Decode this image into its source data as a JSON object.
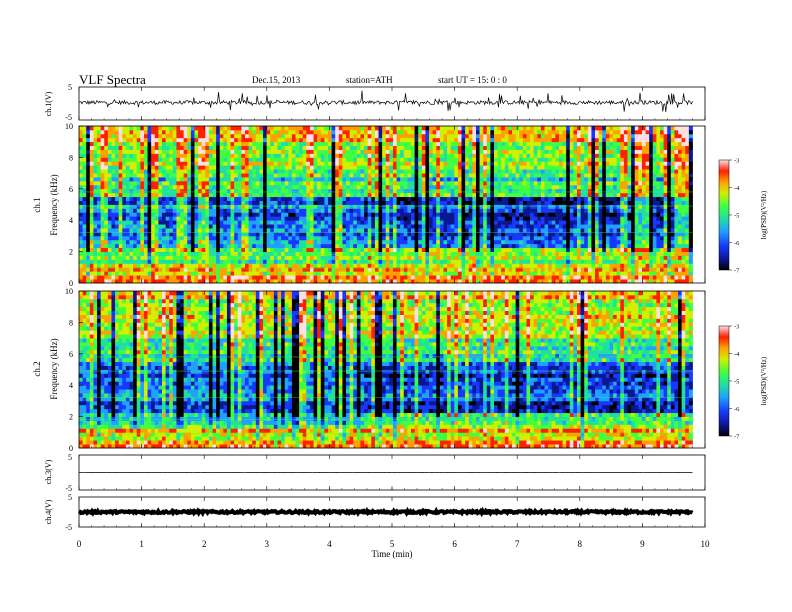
{
  "header": {
    "title": "VLF  Spectra",
    "date": "Dec.15, 2013",
    "station": "station=ATH",
    "start_ut": "start  UT  =    15: 0   : 0"
  },
  "colors": {
    "colormap": [
      "#000000",
      "#0a1890",
      "#1838ff",
      "#20a0ff",
      "#20e0a0",
      "#40ff40",
      "#d0f000",
      "#ffa000",
      "#ff2000",
      "#ffe0e0"
    ],
    "trace": "#000000"
  },
  "chart_data": [
    {
      "type": "line",
      "name": "ch1-waveform",
      "ylabel": "ch.1(V)",
      "ylim": [
        -5,
        5
      ],
      "yticks": [
        "5",
        "-5"
      ],
      "xlim": [
        0,
        10
      ],
      "note_values": "continuous noisy trace near 0 V with frequent spikes",
      "baseline": 0.3,
      "noise_amplitude": 0.6
    },
    {
      "type": "heatmap",
      "name": "ch1-spectrogram",
      "ylabel_channel": "ch.1",
      "ylabel": "Frequency  (kHz)",
      "ylim": [
        0,
        10
      ],
      "yticks": [
        "0",
        "2",
        "4",
        "6",
        "8",
        "10"
      ],
      "xlim": [
        0,
        9.8
      ],
      "colorbar": {
        "label": "log(PSD)(V²/Hz)",
        "range": [
          -7,
          -3
        ],
        "ticks": [
          "-3",
          "-4",
          "-5",
          "-6",
          "-7"
        ]
      },
      "band_change_time": 4.5
    },
    {
      "type": "heatmap",
      "name": "ch2-spectrogram",
      "ylabel_channel": "ch.2",
      "ylabel": "Frequency  (kHz)",
      "ylim": [
        0,
        10
      ],
      "yticks": [
        "0",
        "2",
        "4",
        "6",
        "8",
        "10"
      ],
      "xlim": [
        0,
        9.8
      ],
      "colorbar": {
        "label": "log(PSD)(V²/Hz)",
        "range": [
          -7,
          -3
        ],
        "ticks": [
          "-3",
          "-4",
          "-5",
          "-6",
          "-7"
        ]
      },
      "band_change_time": 4.5
    },
    {
      "type": "line",
      "name": "ch3-waveform",
      "ylabel": "ch.3(V)",
      "ylim": [
        -5,
        5
      ],
      "yticks": [
        "5",
        "-5"
      ],
      "xlim": [
        0,
        10
      ],
      "baseline": 0.0,
      "noise_amplitude": 0.05
    },
    {
      "type": "line",
      "name": "ch4-waveform",
      "ylabel": "ch.4(V)",
      "ylim": [
        -5,
        5
      ],
      "yticks": [
        "5",
        "-5"
      ],
      "xlim": [
        0,
        10
      ],
      "baseline": 0.0,
      "noise_amplitude": 0.35
    }
  ],
  "x_axis": {
    "label": "Time  (min)",
    "range": [
      0,
      10
    ],
    "ticks": [
      "0",
      "1",
      "2",
      "3",
      "4",
      "5",
      "6",
      "7",
      "8",
      "9",
      "10"
    ]
  }
}
